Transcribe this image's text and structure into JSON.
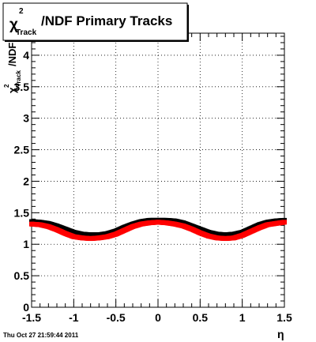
{
  "chart_data": {
    "type": "scatter",
    "title_main": "/NDF  Primary Tracks",
    "title_symbol": "χ",
    "title_superscript": "2",
    "title_subscript": "Track",
    "xlabel": "η",
    "ylabel_symbol": "χ",
    "ylabel_superscript": "2",
    "ylabel_subscript": "Track",
    "ylabel_suffix": "/NDF",
    "xlim": [
      -1.5,
      1.5
    ],
    "ylim": [
      0,
      4.35
    ],
    "grid": true,
    "x_ticks": [
      -1.5,
      -1,
      -0.5,
      0,
      0.5,
      1,
      1.5
    ],
    "x_tick_labels": [
      "-1.5",
      "-1",
      "-0.5",
      "0",
      "0.5",
      "1",
      "1.5"
    ],
    "y_ticks": [
      0,
      0.5,
      1,
      1.5,
      2,
      2.5,
      3,
      3.5,
      4
    ],
    "y_tick_labels": [
      "0",
      "0.5",
      "1",
      "1.5",
      "2",
      "2.5",
      "3",
      "3.5",
      "4"
    ],
    "series": [
      {
        "color": "#000000",
        "x": [
          -1.5,
          -1.4,
          -1.3,
          -1.2,
          -1.1,
          -1.0,
          -0.9,
          -0.8,
          -0.7,
          -0.6,
          -0.5,
          -0.4,
          -0.3,
          -0.2,
          -0.1,
          0.0,
          0.1,
          0.2,
          0.3,
          0.4,
          0.5,
          0.6,
          0.7,
          0.8,
          0.9,
          1.0,
          1.1,
          1.2,
          1.3,
          1.4,
          1.5
        ],
        "y": [
          1.36,
          1.35,
          1.33,
          1.29,
          1.24,
          1.19,
          1.16,
          1.15,
          1.15,
          1.17,
          1.21,
          1.27,
          1.32,
          1.36,
          1.38,
          1.38,
          1.38,
          1.37,
          1.34,
          1.29,
          1.24,
          1.19,
          1.16,
          1.15,
          1.16,
          1.19,
          1.25,
          1.31,
          1.35,
          1.37,
          1.38
        ]
      },
      {
        "color": "#ff0000",
        "x": [
          -1.5,
          -1.4,
          -1.3,
          -1.2,
          -1.1,
          -1.0,
          -0.9,
          -0.8,
          -0.7,
          -0.6,
          -0.5,
          -0.4,
          -0.3,
          -0.2,
          -0.1,
          0.0,
          0.1,
          0.2,
          0.3,
          0.4,
          0.5,
          0.6,
          0.7,
          0.8,
          0.9,
          1.0,
          1.1,
          1.2,
          1.3,
          1.4,
          1.5
        ],
        "y": [
          1.32,
          1.31,
          1.28,
          1.23,
          1.17,
          1.12,
          1.1,
          1.09,
          1.1,
          1.12,
          1.16,
          1.22,
          1.28,
          1.32,
          1.34,
          1.35,
          1.34,
          1.32,
          1.29,
          1.24,
          1.18,
          1.13,
          1.1,
          1.09,
          1.1,
          1.14,
          1.2,
          1.26,
          1.31,
          1.33,
          1.35
        ]
      }
    ]
  },
  "footer": {
    "timestamp": "Thu Oct 27 21:59:44 2011"
  }
}
